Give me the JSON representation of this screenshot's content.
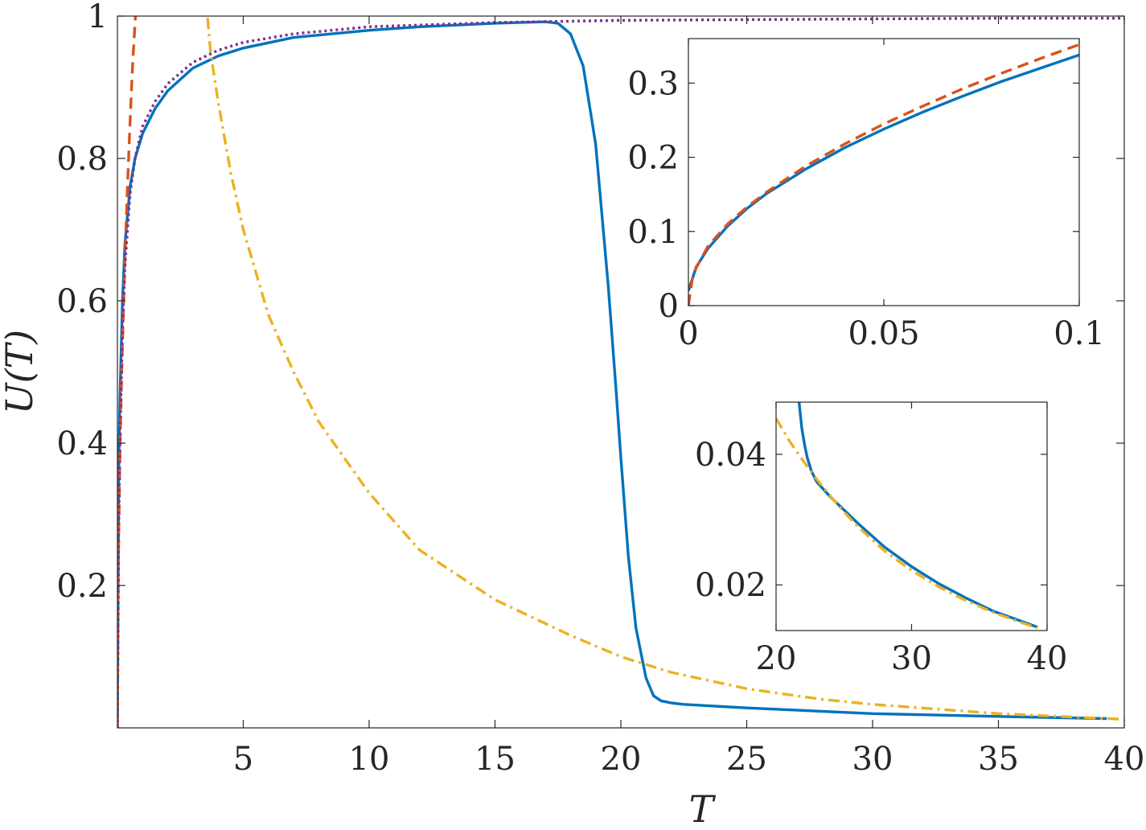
{
  "colors": {
    "numerical": "#0072BD",
    "small_T": "#D95319",
    "large_T": "#EDB120",
    "saturation": "#7E2F8E",
    "axes": "#262626"
  },
  "chart_data": [
    {
      "id": "main",
      "type": "line",
      "xlabel": "T",
      "ylabel": "U(T)",
      "xlim": [
        0,
        40
      ],
      "ylim": [
        0,
        1
      ],
      "xticks": [
        5,
        10,
        15,
        20,
        25,
        30,
        35,
        40
      ],
      "xtick_labels": [
        "5",
        "10",
        "15",
        "20",
        "25",
        "30",
        "35",
        "40"
      ],
      "yticks": [
        0.2,
        0.4,
        0.6,
        0.8,
        1
      ],
      "ytick_labels": [
        "0.2",
        "0.4",
        "0.6",
        "0.8",
        "1"
      ],
      "grid": false,
      "series": [
        {
          "color_key": "numerical",
          "dash": "solid",
          "x": [
            0,
            0.05,
            0.1,
            0.2,
            0.3,
            0.5,
            0.7,
            1,
            1.5,
            2,
            3,
            4,
            5,
            7,
            10,
            12,
            15,
            17,
            17.5,
            18,
            18.5,
            19,
            19.5,
            19.8,
            20,
            20.3,
            20.6,
            21,
            21.3,
            21.6,
            22,
            22.5,
            23,
            25,
            30,
            35,
            39.3
          ],
          "y": [
            0,
            0.36,
            0.46,
            0.6,
            0.68,
            0.76,
            0.8,
            0.835,
            0.87,
            0.895,
            0.927,
            0.944,
            0.955,
            0.97,
            0.98,
            0.985,
            0.99,
            0.992,
            0.99,
            0.975,
            0.93,
            0.82,
            0.62,
            0.48,
            0.38,
            0.24,
            0.14,
            0.07,
            0.045,
            0.038,
            0.035,
            0.033,
            0.032,
            0.028,
            0.02,
            0.016,
            0.013
          ]
        },
        {
          "color_key": "small_T",
          "dash": "dashed",
          "x": [
            0,
            0.02,
            0.05,
            0.1,
            0.15,
            0.2,
            0.3,
            0.4,
            0.5,
            0.6,
            0.7,
            0.75,
            0.8
          ],
          "y": [
            0,
            0.17,
            0.27,
            0.38,
            0.47,
            0.54,
            0.66,
            0.76,
            0.85,
            0.93,
            0.99,
            1.02,
            1.05
          ]
        },
        {
          "color_key": "large_T",
          "dash": "dashdot",
          "x": [
            3.5,
            3.7,
            4,
            4.5,
            5,
            6,
            7,
            8,
            10,
            12,
            15,
            18,
            20,
            22,
            25,
            28,
            30,
            35,
            40
          ],
          "y": [
            1.03,
            0.95,
            0.88,
            0.78,
            0.7,
            0.58,
            0.5,
            0.43,
            0.33,
            0.25,
            0.18,
            0.13,
            0.1,
            0.078,
            0.055,
            0.04,
            0.033,
            0.02,
            0.012
          ]
        },
        {
          "color_key": "saturation",
          "dash": "dotted",
          "x": [
            0,
            0.05,
            0.1,
            0.2,
            0.3,
            0.5,
            0.7,
            1,
            1.5,
            2,
            3,
            4,
            5,
            7,
            10,
            15,
            20,
            25,
            30,
            35,
            40
          ],
          "y": [
            0,
            0.28,
            0.4,
            0.56,
            0.65,
            0.75,
            0.8,
            0.845,
            0.88,
            0.905,
            0.935,
            0.952,
            0.963,
            0.975,
            0.985,
            0.991,
            0.994,
            0.995,
            0.996,
            0.997,
            0.997
          ]
        }
      ]
    },
    {
      "id": "inset_small",
      "type": "line",
      "xlim": [
        0,
        0.1
      ],
      "ylim": [
        0,
        0.36
      ],
      "xticks": [
        0,
        0.05,
        0.1
      ],
      "xtick_labels": [
        "0",
        "0.05",
        "0.1"
      ],
      "yticks": [
        0,
        0.1,
        0.2,
        0.3
      ],
      "ytick_labels": [
        "0",
        "0.1",
        "0.2",
        "0.3"
      ],
      "grid": false,
      "series": [
        {
          "color_key": "numerical",
          "dash": "solid",
          "x": [
            0,
            0.002,
            0.005,
            0.01,
            0.015,
            0.02,
            0.03,
            0.04,
            0.05,
            0.06,
            0.07,
            0.08,
            0.09,
            0.1
          ],
          "y": [
            0.02,
            0.052,
            0.077,
            0.107,
            0.131,
            0.151,
            0.184,
            0.213,
            0.238,
            0.261,
            0.282,
            0.302,
            0.32,
            0.338
          ]
        },
        {
          "color_key": "small_T",
          "dash": "dashed",
          "x": [
            0,
            0.001,
            0.002,
            0.005,
            0.01,
            0.015,
            0.02,
            0.03,
            0.04,
            0.05,
            0.06,
            0.07,
            0.08,
            0.09,
            0.1
          ],
          "y": [
            0,
            0.036,
            0.051,
            0.08,
            0.11,
            0.133,
            0.153,
            0.188,
            0.218,
            0.245,
            0.269,
            0.292,
            0.313,
            0.333,
            0.352
          ]
        }
      ]
    },
    {
      "id": "inset_large",
      "type": "line",
      "xlim": [
        20,
        40
      ],
      "ylim": [
        0.013,
        0.048
      ],
      "xticks": [
        20,
        30,
        40
      ],
      "xtick_labels": [
        "20",
        "30",
        "40"
      ],
      "yticks": [
        0.02,
        0.04
      ],
      "ytick_labels": [
        "0.02",
        "0.04"
      ],
      "grid": false,
      "series": [
        {
          "color_key": "numerical",
          "dash": "solid",
          "x": [
            21.7,
            21.9,
            22.1,
            22.3,
            22.6,
            23,
            24,
            25,
            26,
            28,
            30,
            32,
            34,
            36,
            38,
            39.3
          ],
          "y": [
            0.048,
            0.044,
            0.0415,
            0.0395,
            0.0375,
            0.0358,
            0.0335,
            0.0315,
            0.0295,
            0.0258,
            0.0228,
            0.0202,
            0.018,
            0.016,
            0.0145,
            0.0135
          ]
        },
        {
          "color_key": "large_T",
          "dash": "dashdot",
          "x": [
            20,
            21,
            22,
            23,
            24,
            25,
            26,
            28,
            30,
            32,
            34,
            36,
            38,
            39.3
          ],
          "y": [
            0.0455,
            0.042,
            0.039,
            0.0362,
            0.0336,
            0.0312,
            0.029,
            0.0252,
            0.0222,
            0.0197,
            0.0176,
            0.0158,
            0.0143,
            0.0134
          ]
        }
      ]
    }
  ]
}
